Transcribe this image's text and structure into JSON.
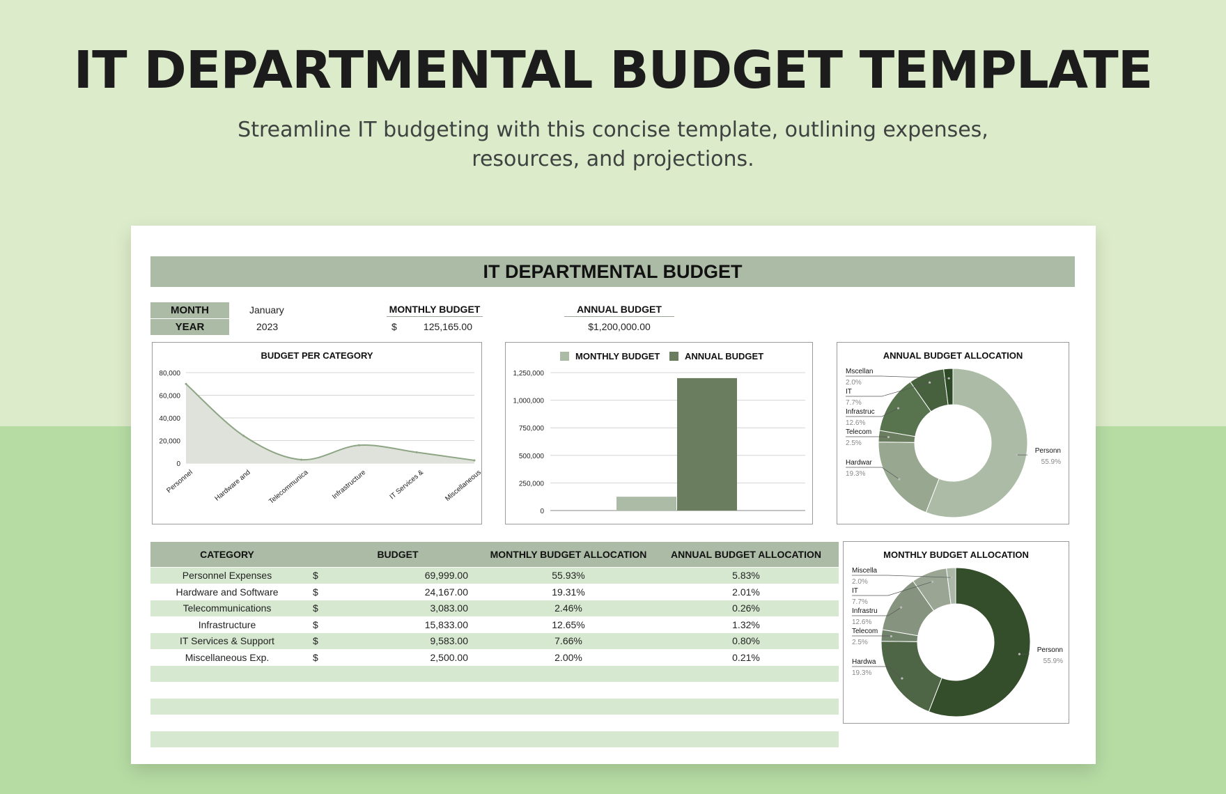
{
  "hero": {
    "title": "IT DEPARTMENTAL BUDGET TEMPLATE",
    "subtitle_line1": "Streamline IT budgeting with this concise template, outlining expenses,",
    "subtitle_line2": "resources, and projections."
  },
  "sheet": {
    "banner": "IT DEPARTMENTAL BUDGET",
    "month_label": "MONTH",
    "month_value": "January",
    "year_label": "YEAR",
    "year_value": "2023",
    "monthly_budget_label": "MONTHLY BUDGET",
    "monthly_budget_currency": "$",
    "monthly_budget_value": "125,165.00",
    "annual_budget_label": "ANNUAL BUDGET",
    "annual_budget_value": "$1,200,000.00"
  },
  "table": {
    "headers": [
      "CATEGORY",
      "BUDGET",
      "MONTHLY BUDGET ALLOCATION",
      "ANNUAL BUDGET ALLOCATION"
    ],
    "rows": [
      {
        "category": "Personnel Expenses",
        "currency": "$",
        "budget": "69,999.00",
        "monthly": "55.93%",
        "annual": "5.83%"
      },
      {
        "category": "Hardware and Software",
        "currency": "$",
        "budget": "24,167.00",
        "monthly": "19.31%",
        "annual": "2.01%"
      },
      {
        "category": "Telecommunications",
        "currency": "$",
        "budget": "3,083.00",
        "monthly": "2.46%",
        "annual": "0.26%"
      },
      {
        "category": "Infrastructure",
        "currency": "$",
        "budget": "15,833.00",
        "monthly": "12.65%",
        "annual": "1.32%"
      },
      {
        "category": "IT Services & Support",
        "currency": "$",
        "budget": "9,583.00",
        "monthly": "7.66%",
        "annual": "0.80%"
      },
      {
        "category": "Miscellaneous Exp.",
        "currency": "$",
        "budget": "2,500.00",
        "monthly": "2.00%",
        "annual": "0.21%"
      }
    ],
    "empty_rows": 5
  },
  "colors": {
    "sage": "#acbba5",
    "row_alt": "#d7e8d1",
    "area_fill": "#dfe2da",
    "area_line": "#8ea585",
    "bar_monthly": "#acbba5",
    "bar_annual": "#6a7d5f",
    "donut_annual": [
      "#acbba5",
      "#98a890",
      "#6a7d5f",
      "#58744e",
      "#47603d",
      "#2f4a27"
    ],
    "donut_monthly": [
      "#344d2a",
      "#4f6646",
      "#72836b",
      "#86947f",
      "#9aa693",
      "#acb8a7"
    ]
  },
  "chart_data": [
    {
      "type": "area",
      "title": "BUDGET PER CATEGORY",
      "categories": [
        "Personnel",
        "Hardware and",
        "Telecommunica",
        "Infrastructure",
        "IT Services &",
        "Miscellaneous"
      ],
      "values": [
        69999,
        24167,
        3083,
        15833,
        9583,
        2500
      ],
      "yticks": [
        "80,000",
        "60,000",
        "40,000",
        "20,000",
        "0"
      ],
      "ylim": [
        0,
        80000
      ],
      "grid": true
    },
    {
      "type": "bar",
      "series": [
        {
          "name": "MONTHLY BUDGET",
          "values": [
            125165
          ]
        },
        {
          "name": "ANNUAL BUDGET",
          "values": [
            1200000
          ]
        }
      ],
      "yticks": [
        "1,250,000",
        "1,000,000",
        "750,000",
        "500,000",
        "250,000",
        "0"
      ],
      "ylim": [
        0,
        1250000
      ],
      "legend": "top",
      "grid": true
    },
    {
      "type": "pie",
      "title": "ANNUAL BUDGET ALLOCATION",
      "slices": [
        {
          "label": "Personn",
          "pct": "55.9%",
          "value": 55.9
        },
        {
          "label": "Hardwar",
          "pct": "19.3%",
          "value": 19.3
        },
        {
          "label": "Telecom",
          "pct": "2.5%",
          "value": 2.5
        },
        {
          "label": "Infrastruc",
          "pct": "12.6%",
          "value": 12.6
        },
        {
          "label": "IT",
          "pct": "7.7%",
          "value": 7.7
        },
        {
          "label": "Mscellan",
          "pct": "2.0%",
          "value": 2.0
        }
      ]
    },
    {
      "type": "pie",
      "title": "MONTHLY BUDGET ALLOCATION",
      "slices": [
        {
          "label": "Personn",
          "pct": "55.9%",
          "value": 55.9
        },
        {
          "label": "Hardwa",
          "pct": "19.3%",
          "value": 19.3
        },
        {
          "label": "Telecom",
          "pct": "2.5%",
          "value": 2.5
        },
        {
          "label": "Infrastru",
          "pct": "12.6%",
          "value": 12.6
        },
        {
          "label": "IT",
          "pct": "7.7%",
          "value": 7.7
        },
        {
          "label": "Miscella",
          "pct": "2.0%",
          "value": 2.0
        }
      ]
    }
  ]
}
